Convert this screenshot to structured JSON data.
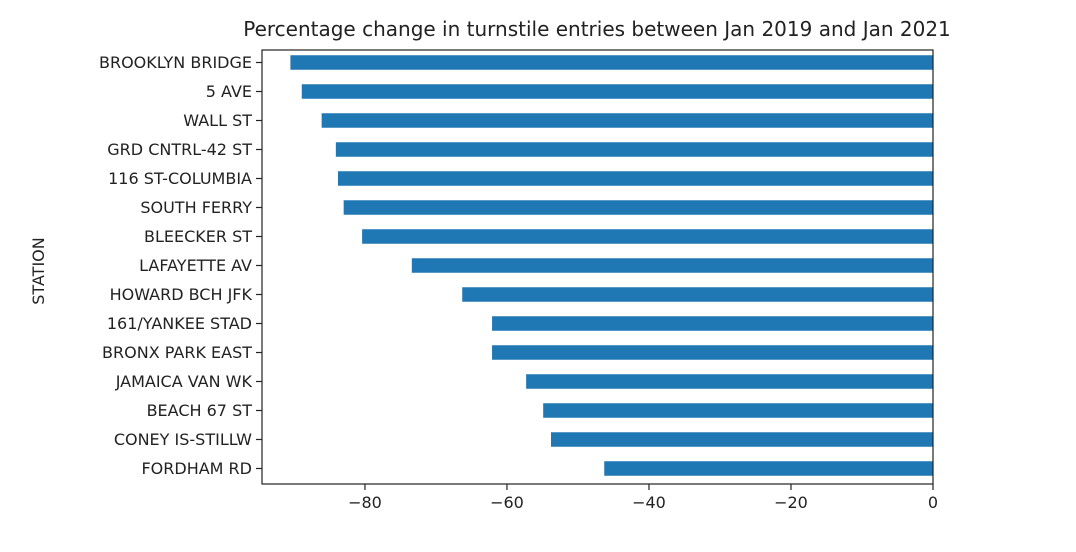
{
  "chart_data": {
    "type": "bar",
    "orientation": "horizontal",
    "title": "Percentage change in turnstile entries between Jan 2019 and Jan 2021",
    "ylabel": "STATION",
    "xlabel": "",
    "xlim": [
      -94.5,
      0
    ],
    "xticks": [
      -80,
      -60,
      -40,
      -20,
      0
    ],
    "xtick_labels": [
      "−80",
      "−60",
      "−40",
      "−20",
      "0"
    ],
    "categories": [
      "BROOKLYN BRIDGE",
      "5 AVE",
      "WALL ST",
      "GRD CNTRL-42 ST",
      "116 ST-COLUMBIA",
      "SOUTH FERRY",
      "BLEECKER ST",
      "LAFAYETTE AV",
      "HOWARD BCH JFK",
      "161/YANKEE STAD",
      "BRONX PARK EAST",
      "JAMAICA VAN WK",
      "BEACH 67 ST",
      "CONEY IS-STILLW",
      "FORDHAM RD"
    ],
    "values": [
      -90.5,
      -88.9,
      -86.1,
      -84.1,
      -83.8,
      -83.0,
      -80.4,
      -73.4,
      -66.3,
      -62.1,
      -62.1,
      -57.3,
      -54.9,
      -53.8,
      -46.3
    ],
    "color": "#1f77b4",
    "grid": false,
    "legend": "none"
  }
}
